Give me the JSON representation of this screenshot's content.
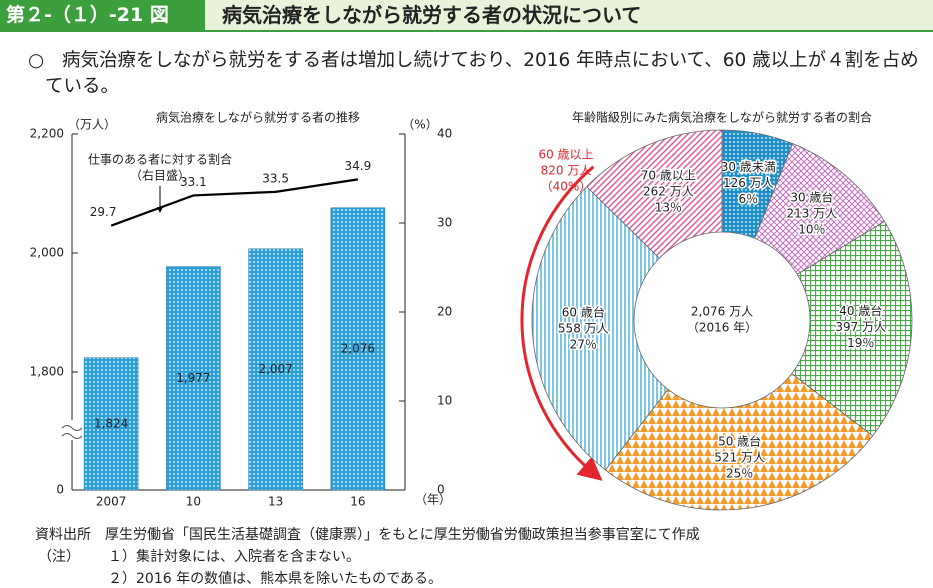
{
  "header": {
    "figure_number": "第２-（１）-21 図",
    "title": "病気治療をしながら就労する者の状況について"
  },
  "summary": {
    "bullet": "○",
    "text": "病気治療をしながら就労をする者は増加し続けており、2016 年時点において、60 歳以上が４割を占めている。"
  },
  "chart_data": [
    {
      "type": "bar",
      "title": "病気治療をしながら就労する者の推移",
      "y_unit": "（万人）",
      "y2_unit": "（%）",
      "x_unit": "（年）",
      "categories": [
        "2007",
        "10",
        "13",
        "16"
      ],
      "ylim": [
        0,
        2200
      ],
      "y_break": 1800,
      "yticks": [
        0,
        {
          "value": 1800,
          "label": "1,800"
        },
        {
          "value": 2000,
          "label": "2,000"
        },
        {
          "value": 2200,
          "label": "2,200"
        }
      ],
      "y2lim": [
        0,
        40
      ],
      "y2ticks": [
        0,
        10,
        20,
        30,
        40
      ],
      "series": [
        {
          "type": "bar",
          "color": "#2b9fd8",
          "values": [
            1824,
            1977,
            2007,
            2076
          ],
          "value_labels": [
            "1,824",
            "1,977",
            "2,007",
            "2,076"
          ]
        },
        {
          "type": "line",
          "name": "仕事のある者に対する割合",
          "axis": "y2",
          "color": "#000000",
          "values": [
            29.7,
            33.1,
            33.5,
            34.9
          ]
        }
      ],
      "annotations": [
        "（右目盛）"
      ]
    },
    {
      "type": "donut",
      "title": "年齢階級別にみた病気治療をしながら就労する者の割合",
      "center_label": [
        "2,076 万人",
        "（2016 年）"
      ],
      "categories": [
        "30 歳未満",
        "30 歳台",
        "40 歳台",
        "50 歳台",
        "60 歳台",
        "70 歳以上"
      ],
      "values": [
        126,
        213,
        397,
        521,
        558,
        262
      ],
      "value_labels": [
        "126 万人",
        "213 万人",
        "397 万人",
        "521 万人",
        "558 万人",
        "262 万人"
      ],
      "percent_labels": [
        "6％",
        "10％",
        "19％",
        "25％",
        "27％",
        "13％"
      ],
      "colors": [
        "#1f8fc9",
        "#c66fbf",
        "#4aa84a",
        "#f39a2b",
        "#5bb8e0",
        "#e0559a"
      ],
      "patterns": [
        "dots",
        "crosshatch",
        "grid",
        "triangles",
        "vertical",
        "diagonal"
      ],
      "group_annotation": [
        "60 歳以上",
        "820 万人",
        "（40%）"
      ]
    }
  ],
  "notes": {
    "source_label": "資料出所",
    "source": "厚生労働省「国民生活基礎調査（健康票）」をもとに厚生労働省労働政策担当参事官室にて作成",
    "notes_label": "（注）",
    "items": [
      "１）集計対象には、入院者を含まない。",
      "２）2016 年の数値は、熊本県を除いたものである。"
    ]
  }
}
